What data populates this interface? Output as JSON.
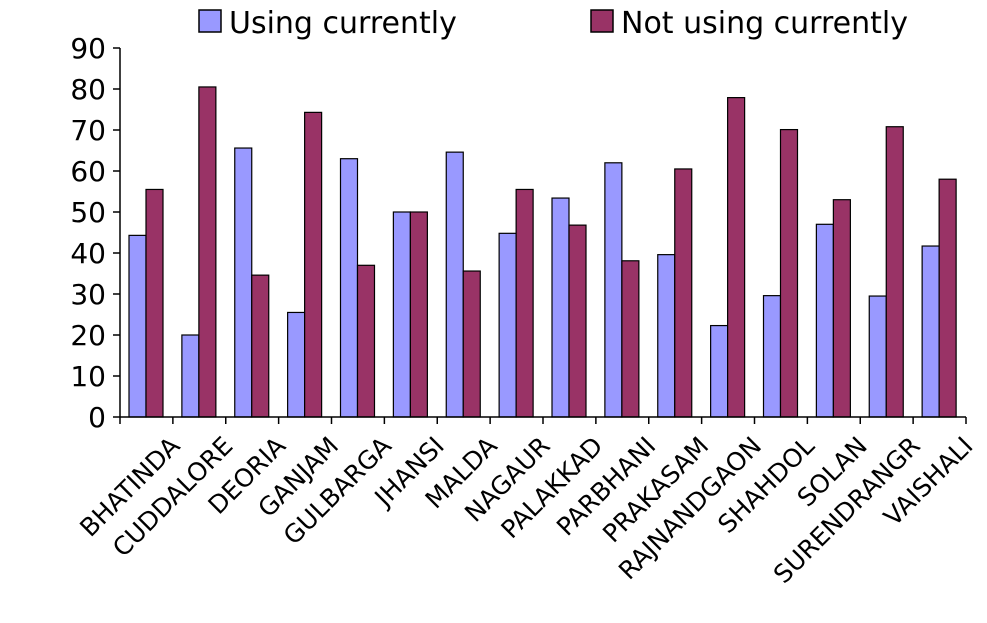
{
  "chart_data": {
    "type": "bar",
    "title": "",
    "xlabel": "",
    "ylabel": "",
    "ylim": [
      0,
      90
    ],
    "yticks": [
      "0",
      "10",
      "20",
      "30",
      "40",
      "50",
      "60",
      "70",
      "80",
      "90"
    ],
    "grid": false,
    "legend_position": "top",
    "categories": [
      "BHATINDA",
      "CUDDALORE",
      "DEORIA",
      "GANJAM",
      "GULBARGA",
      "JHANSI",
      "MALDA",
      "NAGAUR",
      "PALAKKAD",
      "PARBHANI",
      "PRAKASAM",
      "RAJNANDGAON",
      "SHAHDOL",
      "SOLAN",
      "SURENDRANGR",
      "VAISHALI"
    ],
    "series": [
      {
        "name": "Using currently",
        "color": "#9999ff",
        "values": [
          44.3,
          20,
          65.6,
          25.5,
          63,
          50,
          64.6,
          44.8,
          53.4,
          62,
          39.6,
          22.3,
          29.6,
          47,
          29.5,
          41.7
        ]
      },
      {
        "name": "Not using currently",
        "color": "#993366",
        "values": [
          55.5,
          80.5,
          34.6,
          74.3,
          37,
          50,
          35.6,
          55.5,
          46.8,
          38.1,
          60.5,
          77.9,
          70.1,
          53,
          70.8,
          58
        ]
      }
    ]
  }
}
